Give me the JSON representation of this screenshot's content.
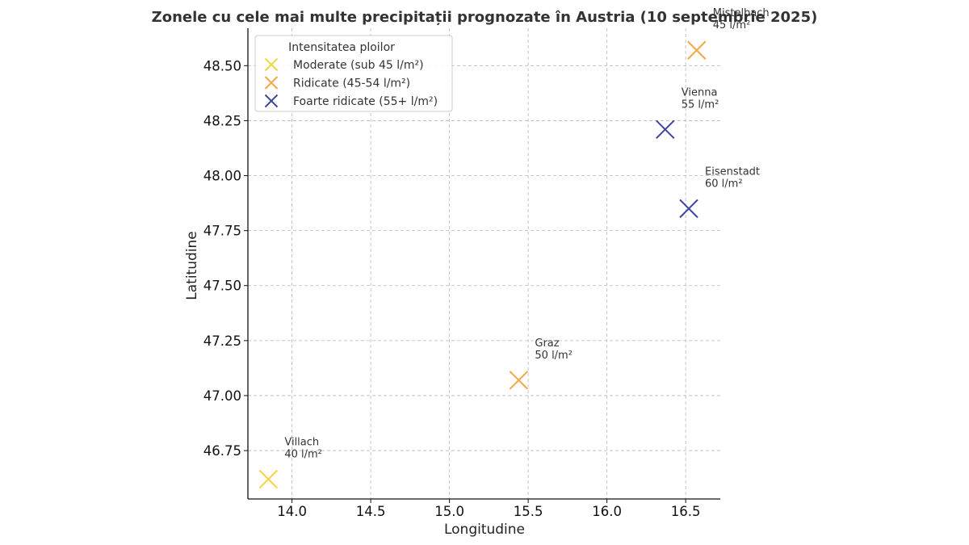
{
  "chart_data": {
    "type": "scatter",
    "title": "Zonele cu cele mai multe precipitații prognozate în Austria (10 septembrie 2025)",
    "xlabel": "Longitudine",
    "ylabel": "Latitudine",
    "xlim": [
      13.72,
      16.72
    ],
    "ylim": [
      46.53,
      48.67
    ],
    "xticks": [
      14.0,
      14.5,
      15.0,
      15.5,
      16.0,
      16.5
    ],
    "yticks": [
      46.75,
      47.0,
      47.25,
      47.5,
      47.75,
      48.0,
      48.25,
      48.5
    ],
    "xtick_labels": [
      "14.0",
      "14.5",
      "15.0",
      "15.5",
      "16.0",
      "16.5"
    ],
    "ytick_labels": [
      "46.75",
      "47.00",
      "47.25",
      "47.50",
      "47.75",
      "48.00",
      "48.25",
      "48.50"
    ],
    "grid": true,
    "marker": "x",
    "legend": {
      "title": "Intensitatea ploilor",
      "placement": "top-left",
      "entries": [
        {
          "label": "Moderate (sub 45 l/m²)",
          "color": "#f5d547"
        },
        {
          "label": "Ridicate (45-54 l/m²)",
          "color": "#f0a94a"
        },
        {
          "label": "Foarte ridicate (55+ l/m²)",
          "color": "#3f479c"
        }
      ]
    },
    "points": [
      {
        "name": "Villach",
        "x": 13.85,
        "y": 46.62,
        "value_label": "40 l/m²",
        "color": "#f5d547"
      },
      {
        "name": "Graz",
        "x": 15.44,
        "y": 47.07,
        "value_label": "50 l/m²",
        "color": "#f0a94a"
      },
      {
        "name": "Eisenstadt",
        "x": 16.52,
        "y": 47.85,
        "value_label": "60 l/m²",
        "color": "#3f479c"
      },
      {
        "name": "Vienna",
        "x": 16.37,
        "y": 48.21,
        "value_label": "55 l/m²",
        "color": "#3f479c"
      },
      {
        "name": "Mistelbach",
        "x": 16.57,
        "y": 48.57,
        "value_label": "45 l/m²",
        "color": "#f0a94a"
      }
    ]
  }
}
